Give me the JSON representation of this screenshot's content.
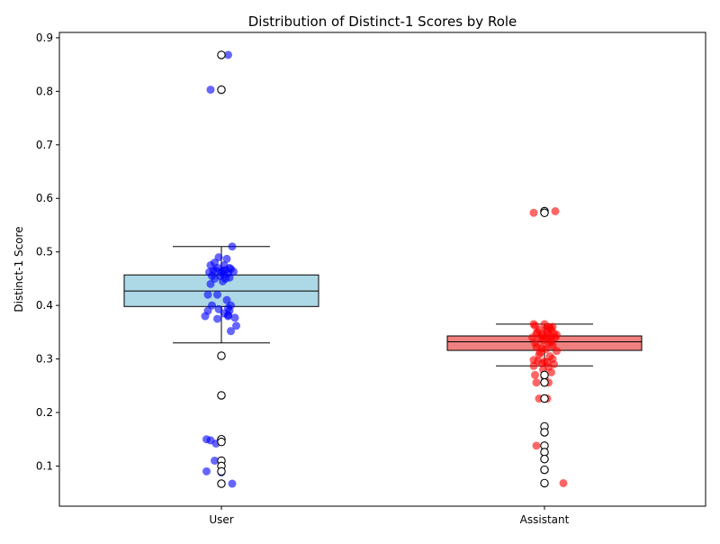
{
  "chart_data": {
    "type": "box",
    "title": "Distribution of Distinct-1 Scores by Role",
    "xlabel": "",
    "ylabel": "Distinct-1 Score",
    "categories": [
      "User",
      "Assistant"
    ],
    "ylim": [
      0.025,
      0.91
    ],
    "yticks": [
      0.1,
      0.2,
      0.3,
      0.4,
      0.5,
      0.6,
      0.7,
      0.8,
      0.9
    ],
    "ytick_labels": [
      "0.1",
      "0.2",
      "0.3",
      "0.4",
      "0.5",
      "0.6",
      "0.7",
      "0.8",
      "0.9"
    ],
    "boxes": [
      {
        "q1": 0.398,
        "median": 0.427,
        "q3": 0.457,
        "whisker_low": 0.33,
        "whisker_high": 0.51,
        "fliers": [
          0.868,
          0.803,
          0.306,
          0.232,
          0.15,
          0.145,
          0.11,
          0.1,
          0.09,
          0.067
        ],
        "color": "#add8e6"
      },
      {
        "q1": 0.316,
        "median": 0.332,
        "q3": 0.343,
        "whisker_low": 0.287,
        "whisker_high": 0.365,
        "fliers": [
          0.576,
          0.573,
          0.27,
          0.256,
          0.226,
          0.174,
          0.163,
          0.138,
          0.126,
          0.113,
          0.093,
          0.068
        ],
        "color": "#f08080"
      }
    ],
    "points": [
      {
        "name": "User",
        "color": "#0000ff",
        "opacity": 0.6,
        "xs": [
          0.05,
          -0.08,
          0.08,
          -0.02,
          0.04,
          0.06,
          -0.05,
          0.02,
          -0.03,
          0.07,
          0.01,
          -0.06,
          0.03,
          0.09,
          -0.09,
          0.0,
          0.05,
          -0.04,
          0.02,
          -0.01,
          0.06,
          -0.07,
          0.03,
          0.01,
          -0.05,
          -0.08,
          -0.1,
          -0.03,
          0.04,
          0.07,
          -0.07,
          0.05,
          -0.02,
          0.06,
          -0.1,
          -0.08,
          0.02,
          0.05,
          0.1,
          0.05,
          0.11,
          -0.03,
          0.07,
          -0.12,
          -0.11,
          -0.04,
          -0.08,
          0.0,
          -0.05,
          0.0,
          -0.11,
          0.0,
          0.08
        ],
        "ys": [
          0.868,
          0.803,
          0.51,
          0.49,
          0.487,
          0.47,
          0.48,
          0.475,
          0.47,
          0.468,
          0.465,
          0.465,
          0.466,
          0.463,
          0.462,
          0.462,
          0.46,
          0.465,
          0.458,
          0.455,
          0.452,
          0.455,
          0.45,
          0.445,
          0.45,
          0.44,
          0.42,
          0.42,
          0.41,
          0.4,
          0.4,
          0.395,
          0.393,
          0.39,
          0.39,
          0.475,
          0.385,
          0.382,
          0.377,
          0.38,
          0.362,
          0.375,
          0.352,
          0.38,
          0.15,
          0.142,
          0.148,
          0.15,
          0.11,
          0.1,
          0.09,
          0.088,
          0.067
        ],
        "ys_extra": []
      },
      {
        "name": "Assistant",
        "color": "#ff0000",
        "opacity": 0.6,
        "xs": [
          -0.08,
          0.08,
          -0.08,
          -0.07,
          0.0,
          0.03,
          0.06,
          0.04,
          -0.04,
          0.01,
          0.05,
          0.02,
          -0.05,
          0.07,
          -0.06,
          0.09,
          0.03,
          -0.02,
          0.05,
          -0.01,
          0.02,
          0.08,
          -0.03,
          -0.09,
          -0.01,
          0.05,
          0.03,
          -0.07,
          0.06,
          -0.06,
          -0.02,
          0.01,
          0.09,
          -0.03,
          -0.04,
          0.04,
          0.06,
          -0.08,
          -0.05,
          0.0,
          0.02,
          -0.02,
          0.07,
          -0.08,
          0.03,
          -0.01,
          0.05,
          -0.07,
          0.0,
          -0.06,
          0.03,
          0.02,
          -0.04,
          0.0,
          0.0,
          -0.06,
          0.14
        ],
        "ys": [
          0.573,
          0.576,
          0.365,
          0.362,
          0.365,
          0.36,
          0.36,
          0.358,
          0.355,
          0.355,
          0.355,
          0.352,
          0.35,
          0.348,
          0.348,
          0.345,
          0.345,
          0.345,
          0.342,
          0.342,
          0.34,
          0.34,
          0.34,
          0.34,
          0.335,
          0.332,
          0.33,
          0.33,
          0.325,
          0.322,
          0.32,
          0.318,
          0.315,
          0.312,
          0.308,
          0.305,
          0.3,
          0.298,
          0.296,
          0.295,
          0.294,
          0.292,
          0.29,
          0.287,
          0.285,
          0.28,
          0.275,
          0.27,
          0.265,
          0.256,
          0.256,
          0.226,
          0.226,
          0.174,
          0.163,
          0.138,
          0.068
        ],
        "ys_extra": []
      }
    ],
    "grid": false,
    "legend": "none"
  }
}
